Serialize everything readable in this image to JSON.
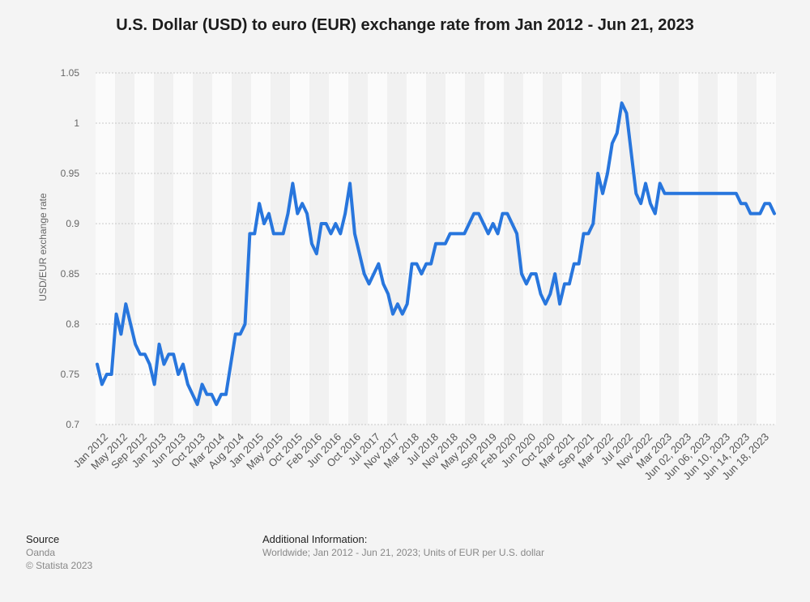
{
  "title": "U.S. Dollar (USD) to euro (EUR) exchange rate from Jan 2012 - Jun 21, 2023",
  "source": {
    "heading": "Source",
    "name": "Oanda",
    "copyright": "© Statista 2023"
  },
  "additional": {
    "heading": "Additional Information:",
    "text": "Worldwide; Jan 2012 - Jun 21, 2023; Units of EUR per U.S. dollar"
  },
  "chart_data": {
    "type": "line",
    "title": "U.S. Dollar (USD) to euro (EUR) exchange rate from Jan 2012 - Jun 21, 2023",
    "xlabel": "",
    "ylabel": "USD/EUR exchange rate",
    "ylim": [
      0.7,
      1.05
    ],
    "yticks": [
      0.7,
      0.75,
      0.8,
      0.85,
      0.9,
      0.95,
      1,
      1.05
    ],
    "ytick_labels": [
      "0.7",
      "0.75",
      "0.8",
      "0.85",
      "0.9",
      "0.95",
      "1",
      "1.05"
    ],
    "grid": true,
    "line_color": "#2876dd",
    "xtick_labels": [
      "Jan 2012",
      "May 2012",
      "Sep 2012",
      "Jan 2013",
      "Jun 2013",
      "Oct 2013",
      "Mar 2014",
      "Aug 2014",
      "Jan 2015",
      "May 2015",
      "Oct 2015",
      "Feb 2016",
      "Jun 2016",
      "Oct 2016",
      "Jul 2017",
      "Nov 2017",
      "Mar 2018",
      "Jul 2018",
      "Nov 2018",
      "May 2019",
      "Sep 2019",
      "Feb 2020",
      "Jun 2020",
      "Oct 2020",
      "Mar 2021",
      "Sep 2021",
      "Mar 2022",
      "Jul 2022",
      "Nov 2022",
      "Mar 2023",
      "Jun 02, 2023",
      "Jun 06, 2023",
      "Jun 10, 2023",
      "Jun 14, 2023",
      "Jun 18, 2023"
    ],
    "series": [
      {
        "values": [
          0.76,
          0.74,
          0.75,
          0.75,
          0.81,
          0.79,
          0.82,
          0.8,
          0.78,
          0.77,
          0.77,
          0.76,
          0.74,
          0.78,
          0.76,
          0.77,
          0.77,
          0.75,
          0.76,
          0.74,
          0.73,
          0.72,
          0.74,
          0.73,
          0.73,
          0.72,
          0.73,
          0.73,
          0.76,
          0.79,
          0.79,
          0.8,
          0.89,
          0.89,
          0.92,
          0.9,
          0.91,
          0.89,
          0.89,
          0.89,
          0.91,
          0.94,
          0.91,
          0.92,
          0.91,
          0.88,
          0.87,
          0.9,
          0.9,
          0.89,
          0.9,
          0.89,
          0.91,
          0.94,
          0.89,
          0.87,
          0.85,
          0.84,
          0.85,
          0.86,
          0.84,
          0.83,
          0.81,
          0.82,
          0.81,
          0.82,
          0.86,
          0.86,
          0.85,
          0.86,
          0.86,
          0.88,
          0.88,
          0.88,
          0.89,
          0.89,
          0.89,
          0.89,
          0.9,
          0.91,
          0.91,
          0.9,
          0.89,
          0.9,
          0.89,
          0.91,
          0.91,
          0.9,
          0.89,
          0.85,
          0.84,
          0.85,
          0.85,
          0.83,
          0.82,
          0.83,
          0.85,
          0.82,
          0.84,
          0.84,
          0.86,
          0.86,
          0.89,
          0.89,
          0.9,
          0.95,
          0.93,
          0.95,
          0.98,
          0.99,
          1.02,
          1.01,
          0.97,
          0.93,
          0.92,
          0.94,
          0.92,
          0.91,
          0.94,
          0.93,
          0.93,
          0.93,
          0.93,
          0.93,
          0.93,
          0.93,
          0.93,
          0.93,
          0.93,
          0.93,
          0.93,
          0.93,
          0.93,
          0.93,
          0.93,
          0.92,
          0.92,
          0.91,
          0.91,
          0.91,
          0.92,
          0.92,
          0.91
        ]
      }
    ]
  }
}
